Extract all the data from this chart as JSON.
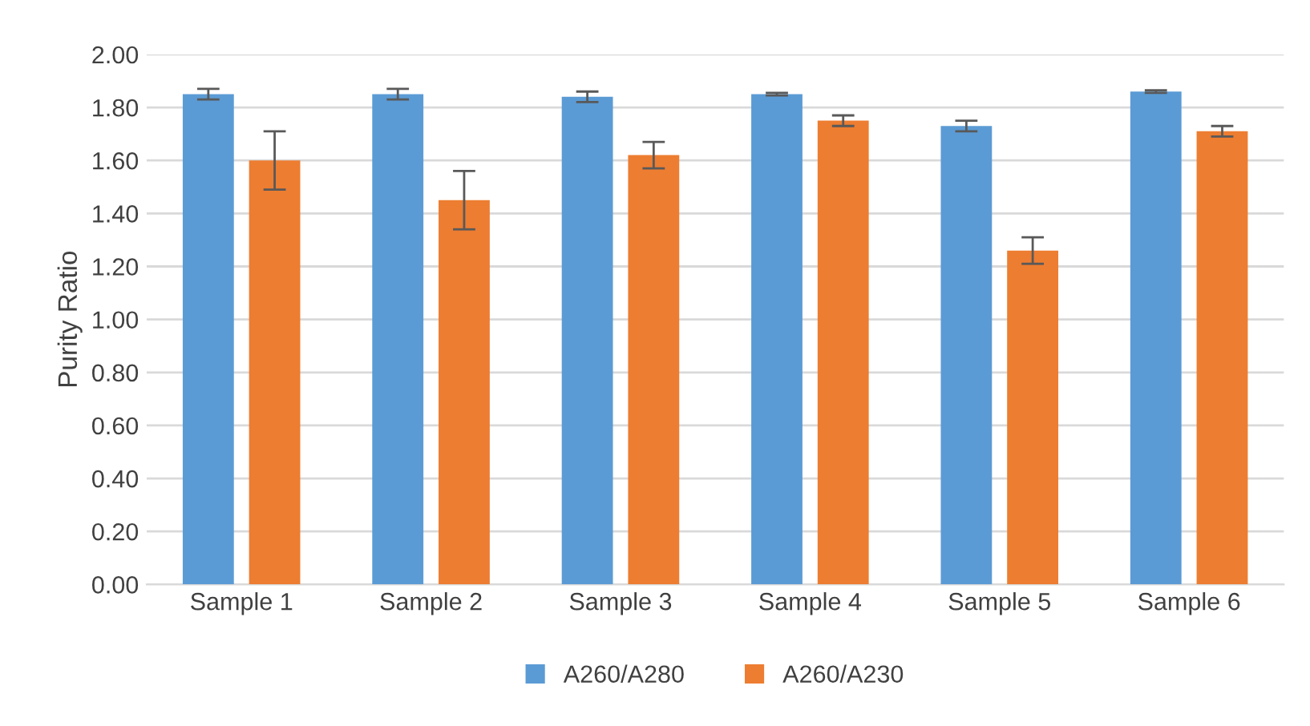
{
  "chart_data": {
    "type": "bar",
    "ylabel": "Purity Ratio",
    "categories": [
      "Sample 1",
      "Sample 2",
      "Sample 3",
      "Sample 4",
      "Sample 5",
      "Sample 6"
    ],
    "series": [
      {
        "name": "A260/A280",
        "color": "#5b9bd5",
        "values": [
          1.85,
          1.85,
          1.84,
          1.85,
          1.73,
          1.86
        ],
        "errors": [
          0.02,
          0.02,
          0.02,
          0.005,
          0.02,
          0.005
        ]
      },
      {
        "name": "A260/A230",
        "color": "#ed7d31",
        "values": [
          1.6,
          1.45,
          1.62,
          1.75,
          1.26,
          1.71
        ],
        "errors": [
          0.11,
          0.11,
          0.05,
          0.02,
          0.05,
          0.02
        ]
      }
    ],
    "ylim": [
      0,
      2
    ],
    "yticks": [
      {
        "value": 0,
        "label": "0.00"
      },
      {
        "value": 0.2,
        "label": "0.20"
      },
      {
        "value": 0.4,
        "label": "0.40"
      },
      {
        "value": 0.6,
        "label": "0.60"
      },
      {
        "value": 0.8,
        "label": "0.80"
      },
      {
        "value": 1.0,
        "label": "1.00"
      },
      {
        "value": 1.2,
        "label": "1.20"
      },
      {
        "value": 1.4,
        "label": "1.40"
      },
      {
        "value": 1.6,
        "label": "1.60"
      },
      {
        "value": 1.8,
        "label": "1.80"
      },
      {
        "value": 2.0,
        "label": "2.00"
      }
    ],
    "grid": "y",
    "legend": "bottom"
  }
}
